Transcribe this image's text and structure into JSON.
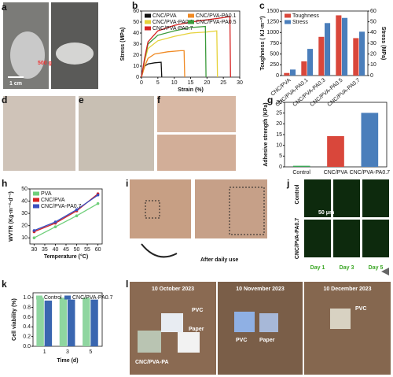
{
  "panel_labels": [
    "a",
    "b",
    "c",
    "d",
    "e",
    "f",
    "g",
    "h",
    "i",
    "j",
    "k",
    "l"
  ],
  "panel_a": {
    "weight": "500 g",
    "scale": "1 cm"
  },
  "panel_i": {
    "caption": "After daily use"
  },
  "panel_j": {
    "rows": [
      "Control",
      "CNC/PVA-PA0.7"
    ],
    "scale": "50 μm",
    "days": [
      "Day 1",
      "Day 3",
      "Day 5"
    ]
  },
  "panel_l": [
    {
      "date": "10 October 2023",
      "labels": [
        "PVC",
        "Paper",
        "CNC/PVA-PA"
      ]
    },
    {
      "date": "10 November 2023",
      "labels": [
        "PVC",
        "Paper"
      ]
    },
    {
      "date": "10 December 2023",
      "labels": [
        "PVC"
      ]
    }
  ],
  "chart_data": [
    {
      "type": "line",
      "xlabel": "Strain (%)",
      "ylabel": "Stress (MPa)",
      "xlim": [
        0,
        30
      ],
      "xticks": [
        0,
        5,
        10,
        15,
        20,
        25,
        30
      ],
      "ylim": [
        0,
        60
      ],
      "yticks": [
        0,
        10,
        20,
        30,
        40,
        50,
        60
      ],
      "legend": "upper-left",
      "series": [
        {
          "name": "CNC/PVA",
          "color": "#111111",
          "x": [
            0,
            0.5,
            1,
            2,
            4,
            6,
            6.2
          ],
          "values": [
            0,
            6,
            10,
            12,
            13,
            13.5,
            0
          ]
        },
        {
          "name": "CNC/PVA-PA0.1",
          "color": "#f08a24",
          "x": [
            0,
            1,
            2,
            4,
            8,
            12,
            13,
            13.2
          ],
          "values": [
            0,
            10,
            17,
            21,
            23,
            24,
            24,
            0
          ]
        },
        {
          "name": "CNC/PVA-PA0.3",
          "color": "#e6d23a",
          "x": [
            0,
            1,
            2,
            5,
            10,
            15,
            20,
            23,
            23.2
          ],
          "values": [
            0,
            15,
            26,
            33,
            37,
            40,
            41,
            42,
            0
          ]
        },
        {
          "name": "CNC/PVA-PA0.5",
          "color": "#3a9a3a",
          "x": [
            0,
            1,
            2,
            5,
            10,
            15,
            19.5,
            19.7
          ],
          "values": [
            0,
            17,
            30,
            38,
            42,
            45,
            46,
            0
          ]
        },
        {
          "name": "CNC/PVA-PA0.7",
          "color": "#d62222",
          "x": [
            0,
            1,
            2,
            5,
            10,
            15,
            20,
            25,
            27,
            27.2
          ],
          "values": [
            0,
            18,
            32,
            42,
            47,
            50,
            52,
            54,
            55,
            0
          ]
        }
      ]
    },
    {
      "type": "bar",
      "ylabel": "Toughness ( KJ·m⁻³)",
      "y2label": "Stress (MPa)",
      "categories": [
        "CNC/PVA",
        "CNC/PVA-PA0.1",
        "CNC/PVA-PA0.3",
        "CNC/PVA-PA0.5",
        "CNC/PVA-PA0.7"
      ],
      "ylim": [
        0,
        1500
      ],
      "yticks": [
        0,
        250,
        500,
        750,
        1000,
        1250,
        1500
      ],
      "y2lim": [
        0,
        60
      ],
      "y2ticks": [
        0,
        10,
        20,
        30,
        40,
        50,
        60
      ],
      "legend": "upper-left",
      "series": [
        {
          "name": "Toughness",
          "color": "#d9473b",
          "values": [
            60,
            330,
            900,
            1400,
            870
          ]
        },
        {
          "name": "Stress",
          "color": "#4a7ebb",
          "axis": "y2",
          "values": [
            5.6,
            24.8,
            48.8,
            53.6,
            40.8
          ]
        }
      ]
    },
    {
      "type": "bar",
      "ylabel": "Adhesive strength (KPa)",
      "categories": [
        "Control",
        "CNC/PVA",
        "CNC/PVA-PA0.7"
      ],
      "values": [
        0.5,
        14.3,
        25.1
      ],
      "colors": [
        "#3aa655",
        "#d9473b",
        "#4a7ebb"
      ],
      "ylim": [
        0,
        30
      ],
      "yticks": [
        0,
        5,
        10,
        15,
        20,
        25,
        30
      ]
    },
    {
      "type": "line",
      "xlabel": "Temperature (°C)",
      "ylabel": "WVTR (Kg·m⁻²·d⁻¹)",
      "x": [
        30,
        40,
        50,
        60
      ],
      "xlim": [
        28,
        62
      ],
      "xticks": [
        30,
        35,
        40,
        45,
        50,
        55,
        60
      ],
      "ylim": [
        5,
        50
      ],
      "yticks": [
        10,
        20,
        30,
        40,
        50
      ],
      "legend": "upper-left",
      "series": [
        {
          "name": "PVA",
          "color": "#6fcf7a",
          "values": [
            10,
            19,
            28,
            38
          ]
        },
        {
          "name": "CNC/PVA",
          "color": "#d62222",
          "values": [
            15,
            22,
            32,
            46
          ]
        },
        {
          "name": "CNC/PVA-PA0.7",
          "color": "#3a4fbf",
          "values": [
            16,
            23,
            33,
            45
          ]
        }
      ]
    },
    {
      "type": "bar",
      "xlabel": "Time (d)",
      "ylabel": "Cell viability (%)",
      "categories": [
        "1",
        "3",
        "5"
      ],
      "ylim": [
        0,
        1.1
      ],
      "yticks": [
        {
          "value": 0,
          "label": "0.0"
        },
        0.2,
        0.4,
        0.6,
        0.8,
        {
          "value": 1,
          "label": "1.0"
        }
      ],
      "legend": "upper-center",
      "series": [
        {
          "name": "Control",
          "color": "#8fd6a0",
          "values": [
            1.0,
            1.0,
            1.0
          ]
        },
        {
          "name": "CNC/PVA-PA0.7",
          "color": "#3a66b0",
          "values": [
            0.94,
            0.96,
            0.96
          ]
        }
      ]
    }
  ]
}
